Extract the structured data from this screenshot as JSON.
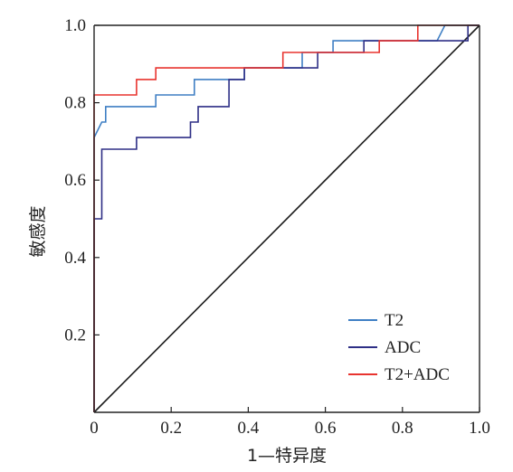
{
  "chart_data": {
    "type": "line",
    "xlabel": "1—特异度",
    "ylabel": "敏感度",
    "xlim": [
      0,
      1
    ],
    "ylim": [
      0,
      1
    ],
    "x_ticks": [
      0,
      0.2,
      0.4,
      0.6,
      0.8,
      1.0
    ],
    "x_tick_labels": [
      "0",
      "0.2",
      "0.4",
      "0.6",
      "0.8",
      "1.0"
    ],
    "y_ticks": [
      0.2,
      0.4,
      0.6,
      0.8,
      1.0
    ],
    "y_tick_labels": [
      "0.2",
      "0.4",
      "0.6",
      "0.8",
      "1.0"
    ],
    "grid": false,
    "legend_position": "bottom-right",
    "reference_line": {
      "x": [
        0,
        1
      ],
      "y": [
        0,
        1
      ],
      "color": "#1a1a1a"
    },
    "series": [
      {
        "name": "T2",
        "color": "#3f7fc4",
        "x": [
          0,
          0,
          0.02,
          0.02,
          0.03,
          0.03,
          0.16,
          0.16,
          0.26,
          0.26,
          0.39,
          0.39,
          0.54,
          0.54,
          0.62,
          0.62,
          0.89,
          0.91,
          1.0
        ],
        "y": [
          0,
          0.71,
          0.75,
          0.75,
          0.75,
          0.79,
          0.79,
          0.82,
          0.82,
          0.86,
          0.86,
          0.89,
          0.89,
          0.93,
          0.93,
          0.96,
          0.96,
          1.0,
          1.0
        ]
      },
      {
        "name": "ADC",
        "color": "#2e2f86",
        "x": [
          0,
          0,
          0.02,
          0.02,
          0.11,
          0.11,
          0.25,
          0.25,
          0.27,
          0.27,
          0.35,
          0.35,
          0.39,
          0.39,
          0.58,
          0.58,
          0.7,
          0.7,
          0.97,
          0.97,
          1.0
        ],
        "y": [
          0,
          0.5,
          0.5,
          0.68,
          0.68,
          0.71,
          0.71,
          0.75,
          0.75,
          0.79,
          0.79,
          0.86,
          0.86,
          0.89,
          0.89,
          0.93,
          0.93,
          0.96,
          0.96,
          1.0,
          1.0
        ]
      },
      {
        "name": "T2+ADC",
        "color": "#e8342f",
        "x": [
          0,
          0,
          0.11,
          0.11,
          0.16,
          0.16,
          0.49,
          0.49,
          0.74,
          0.74,
          0.84,
          0.84,
          1.0
        ],
        "y": [
          0,
          0.82,
          0.82,
          0.86,
          0.86,
          0.89,
          0.89,
          0.93,
          0.93,
          0.96,
          0.96,
          1.0,
          1.0
        ]
      }
    ]
  }
}
